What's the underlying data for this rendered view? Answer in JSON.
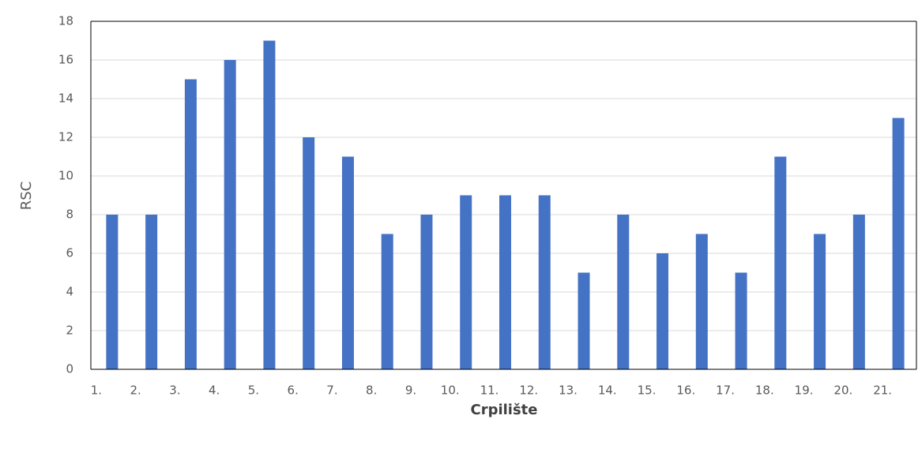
{
  "chart_data": {
    "type": "bar",
    "categories": [
      "1.",
      "2.",
      "3.",
      "4.",
      "5.",
      "6.",
      "7.",
      "8.",
      "9.",
      "10.",
      "11.",
      "12.",
      "13.",
      "14.",
      "15.",
      "16.",
      "17.",
      "18.",
      "19.",
      "20.",
      "21."
    ],
    "values": [
      8,
      8,
      15,
      16,
      17,
      12,
      11,
      7,
      8,
      9,
      9,
      9,
      5,
      8,
      6,
      7,
      5,
      11,
      7,
      8,
      13
    ],
    "color": "#4472c4",
    "x_label": "Crpilište",
    "y_label": "RSC",
    "ylim": [
      0,
      18
    ],
    "yticks": [
      0,
      2,
      4,
      6,
      8,
      10,
      12,
      14,
      16,
      18
    ],
    "grid": true
  }
}
